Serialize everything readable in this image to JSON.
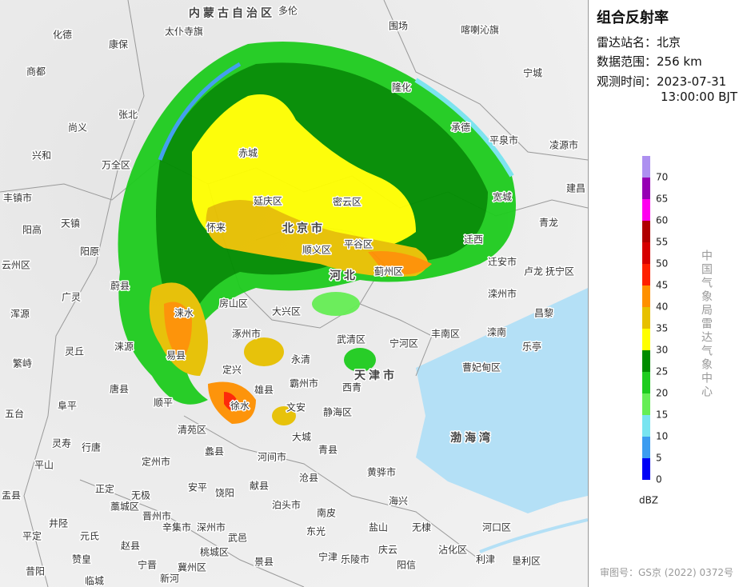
{
  "title": "组合反射率",
  "info": [
    {
      "label": "雷达站名：",
      "value": "北京"
    },
    {
      "label": "数据范围：",
      "value": "256 km"
    },
    {
      "label": "观测时间：",
      "value": "2023-07-31",
      "value2": "13:00:00 BJT"
    }
  ],
  "legend": {
    "unit": "dBZ",
    "levels": [
      {
        "value": 0,
        "color": "#0000f6"
      },
      {
        "value": 5,
        "color": "#3c9cf0"
      },
      {
        "value": 10,
        "color": "#78e4f0"
      },
      {
        "value": 15,
        "color": "#66ee55"
      },
      {
        "value": 20,
        "color": "#1ecc1e"
      },
      {
        "value": 25,
        "color": "#008c00"
      },
      {
        "value": 30,
        "color": "#ffff00"
      },
      {
        "value": 35,
        "color": "#e7c000"
      },
      {
        "value": 40,
        "color": "#ff9000"
      },
      {
        "value": 45,
        "color": "#ff2000"
      },
      {
        "value": 50,
        "color": "#d60000"
      },
      {
        "value": 55,
        "color": "#b00000"
      },
      {
        "value": 60,
        "color": "#ff00f0"
      },
      {
        "value": 65,
        "color": "#9600b4"
      },
      {
        "value": 70,
        "color": "#ad90f0"
      }
    ]
  },
  "credit": "中国气象局雷达气象中心",
  "footer": "审图号：GS京 (2022) 0372号",
  "map_labels": [
    "内蒙古自治区",
    "多伦",
    "太仆寺旗",
    "化德",
    "康保",
    "商都",
    "围场",
    "隆化",
    "宽城",
    "承德",
    "平泉市",
    "凌源市",
    "建昌",
    "青龙",
    "喀喇沁旗",
    "宁城",
    "尚义",
    "张北",
    "兴和",
    "万全区",
    "丰镇市",
    "赤城",
    "天镇",
    "阳高",
    "阳原",
    "延庆区",
    "密云区",
    "北京市",
    "怀来",
    "平谷区",
    "顺义区",
    "迁西",
    "迁安市",
    "卢龙",
    "抚宁区",
    "滦州市",
    "昌黎",
    "蓟州区",
    "河北",
    "丰南区",
    "滦南",
    "乐亭",
    "曹妃甸区",
    "宁河区",
    "武清区",
    "永清",
    "霸州市",
    "涿州市",
    "涞水",
    "涞源",
    "灵丘",
    "易县",
    "定兴",
    "徐水",
    "雄县",
    "文安",
    "静海区",
    "西青",
    "渤海湾",
    "大城",
    "青县",
    "河间市",
    "黄骅市",
    "海兴",
    "沧县",
    "献县",
    "泊头市",
    "南皮",
    "盐山",
    "无棣",
    "东光",
    "宁津",
    "乐陵市",
    "庆云",
    "阳信",
    "沾化区",
    "河口区",
    "利津",
    "垦利区",
    "景县",
    "武邑",
    "深州市",
    "饶阳",
    "安平",
    "定州市",
    "阜平",
    "唐县",
    "顺平",
    "清苑区",
    "蠡县",
    "灵寿",
    "行唐",
    "平山",
    "正定",
    "无极",
    "藁城区",
    "晋州市",
    "辛集市",
    "赵县",
    "元氏",
    "井陉",
    "盂县",
    "平定",
    "宁晋",
    "冀州区",
    "桃城区",
    "新河",
    "赞皇",
    "临城",
    "昔阳",
    "浑源",
    "广灵",
    "繁峙",
    "五台",
    "云州区",
    "蔚县",
    "房山区",
    "大兴区",
    "天津市"
  ]
}
